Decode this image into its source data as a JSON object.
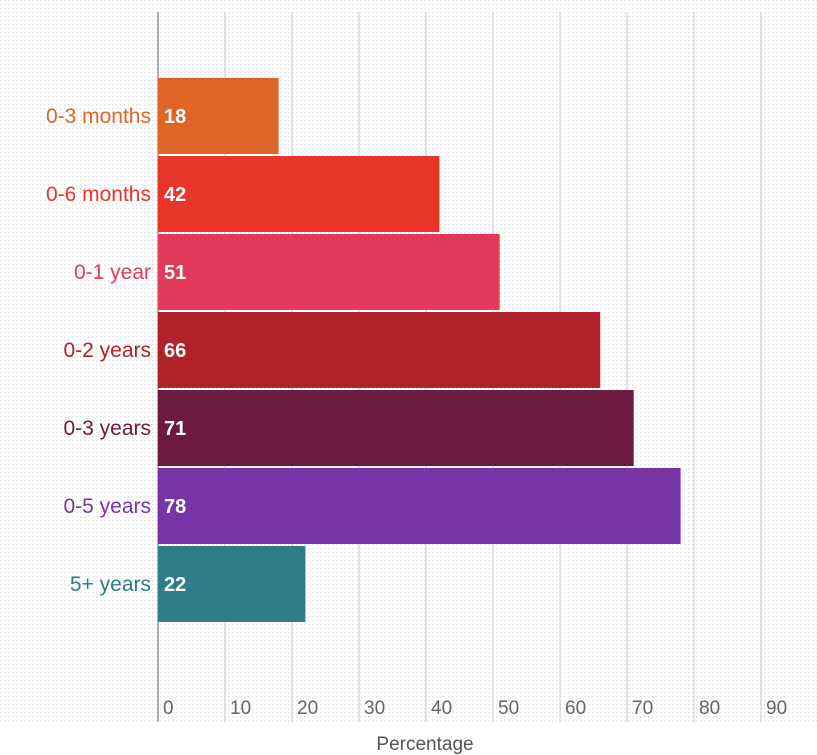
{
  "chart_data": {
    "type": "bar",
    "orientation": "horizontal",
    "categories": [
      "0-3 months",
      "0-6 months",
      "0-1 year",
      "0-2 years",
      "0-3 years",
      "0-5 years",
      "5+ years"
    ],
    "values": [
      18,
      42,
      51,
      66,
      71,
      78,
      22
    ],
    "value_labels": [
      "18",
      "42",
      "51",
      "66",
      "71",
      "78",
      "22"
    ],
    "colors": [
      "#df6527",
      "#e8352b",
      "#e23a5a",
      "#b02229",
      "#6d1a41",
      "#7734a6",
      "#2e7e89"
    ],
    "xlabel": "Percentage",
    "ylabel": "",
    "xlim": [
      0,
      95
    ],
    "x_ticks": [
      0,
      10,
      20,
      30,
      40,
      50,
      60,
      70,
      80,
      90
    ],
    "x_tick_labels": [
      "0",
      "10",
      "20",
      "30",
      "40",
      "50",
      "60",
      "70",
      "80",
      "90"
    ],
    "grid": true
  }
}
